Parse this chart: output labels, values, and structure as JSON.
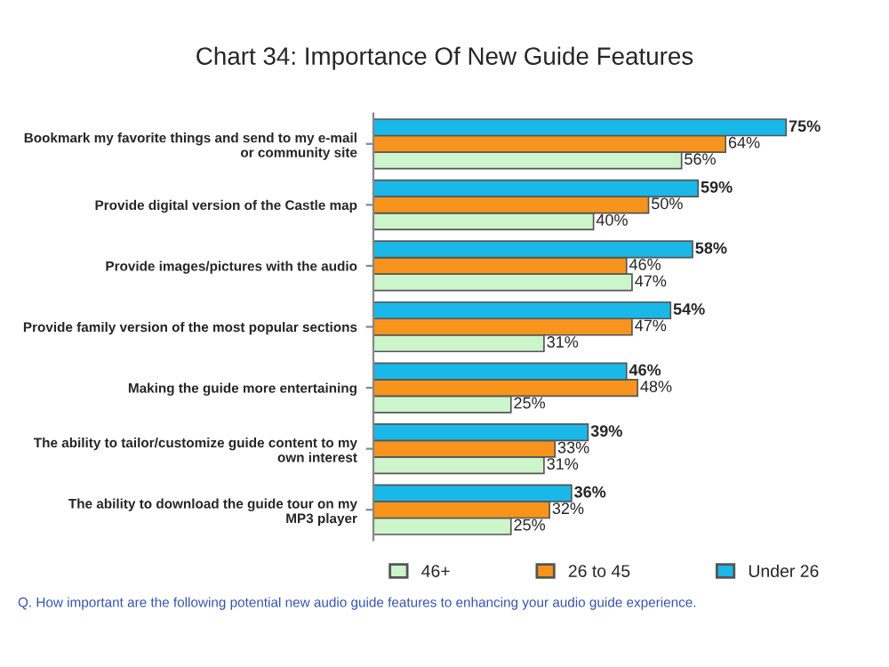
{
  "chart_data": {
    "type": "bar",
    "orientation": "horizontal",
    "title": "Chart 34: Importance Of New Guide Features",
    "categories": [
      "Bookmark my favorite things and send to my e-mail\nor community site",
      "Provide digital version of the Castle map",
      "Provide images/pictures with the audio",
      "Provide family version of the most popular sections",
      "Making the guide more entertaining",
      "The ability to tailor/customize guide content to my\nown interest",
      "The ability to download the guide tour on my\nMP3 player"
    ],
    "series": [
      {
        "name": "46+",
        "color": "#ccf5cc",
        "values": [
          56,
          40,
          47,
          31,
          25,
          31,
          25
        ],
        "value_labels": [
          "56%",
          "40%",
          "47%",
          "31%",
          "25%",
          "31%",
          "25%"
        ]
      },
      {
        "name": "26 to 45",
        "color": "#f7941d",
        "values": [
          64,
          50,
          46,
          47,
          48,
          33,
          32
        ],
        "value_labels": [
          "64%",
          "50%",
          "46%",
          "47%",
          "48%",
          "33%",
          "32%"
        ]
      },
      {
        "name": "Under 26",
        "color": "#1ab8e8",
        "values": [
          75,
          59,
          58,
          54,
          46,
          39,
          36
        ],
        "value_labels": [
          "75%",
          "59%",
          "58%",
          "54%",
          "46%",
          "39%",
          "36%"
        ]
      }
    ],
    "legend": "bottom",
    "grid": false,
    "annotations": [
      "Q. How important are the following potential new audio guide features to enhancing your audio guide experience."
    ]
  }
}
